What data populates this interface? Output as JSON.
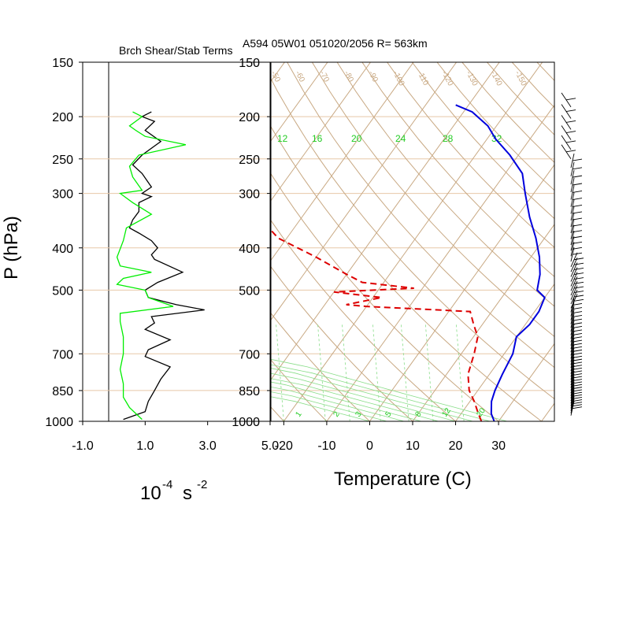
{
  "figure": {
    "left_panel_title": "Brch Shear/Stab Terms",
    "right_panel_title": "A594 05W01 051020/2056 R= 563km",
    "y_axis_label": "P (hPa)",
    "left_x_unit_base": "10",
    "left_x_unit_exp": "-4",
    "left_x_unit_s": "s",
    "left_x_unit_exp2": "-2",
    "right_x_axis_label": "Temperature (C)"
  },
  "colors": {
    "black": "#000000",
    "green": "#00ee00",
    "red": "#dd0000",
    "blue": "#0000dd",
    "tan": "#c8a882",
    "grid": "#e8c8a8",
    "mix_green": "#88dd88"
  },
  "chart_data": [
    {
      "type": "line",
      "panel": "left",
      "y_scale": "log-pressure",
      "ylim": [
        1000,
        150
      ],
      "xlim": [
        -1.0,
        5.0
      ],
      "yticks": [
        150,
        200,
        250,
        300,
        400,
        500,
        700,
        850,
        1000
      ],
      "xticks": [
        "-1.0",
        "1.0",
        "3.0",
        "5.0"
      ],
      "xtick_values": [
        -1.0,
        1.0,
        3.0,
        5.0
      ],
      "series": [
        {
          "color": "black",
          "points": [
            [
              1.2,
              195
            ],
            [
              0.9,
              200
            ],
            [
              1.3,
              205
            ],
            [
              1.0,
              215
            ],
            [
              1.5,
              228
            ],
            [
              0.9,
              245
            ],
            [
              0.6,
              258
            ],
            [
              0.9,
              270
            ],
            [
              1.2,
              290
            ],
            [
              0.9,
              300
            ],
            [
              1.2,
              305
            ],
            [
              0.8,
              315
            ],
            [
              0.8,
              330
            ],
            [
              0.6,
              345
            ],
            [
              0.5,
              360
            ],
            [
              0.8,
              370
            ],
            [
              1.2,
              385
            ],
            [
              1.4,
              400
            ],
            [
              1.2,
              415
            ],
            [
              1.3,
              425
            ],
            [
              2.2,
              455
            ],
            [
              1.4,
              480
            ],
            [
              1.0,
              500
            ],
            [
              1.1,
              520
            ],
            [
              2.0,
              540
            ],
            [
              2.9,
              555
            ],
            [
              1.2,
              575
            ],
            [
              1.3,
              595
            ],
            [
              1.0,
              615
            ],
            [
              1.8,
              650
            ],
            [
              1.1,
              685
            ],
            [
              1.0,
              710
            ],
            [
              1.8,
              750
            ],
            [
              1.5,
              800
            ],
            [
              1.3,
              850
            ],
            [
              1.1,
              900
            ],
            [
              1.0,
              950
            ],
            [
              0.3,
              990
            ]
          ]
        },
        {
          "color": "green",
          "points": [
            [
              0.6,
              195
            ],
            [
              0.9,
              200
            ],
            [
              0.5,
              210
            ],
            [
              0.7,
              215
            ],
            [
              1.0,
              222
            ],
            [
              2.3,
              232
            ],
            [
              0.8,
              245
            ],
            [
              0.5,
              260
            ],
            [
              0.6,
              275
            ],
            [
              0.9,
              295
            ],
            [
              0.2,
              300
            ],
            [
              0.6,
              315
            ],
            [
              1.2,
              335
            ],
            [
              0.4,
              360
            ],
            [
              0.3,
              385
            ],
            [
              0.1,
              420
            ],
            [
              0.2,
              440
            ],
            [
              1.2,
              455
            ],
            [
              0.3,
              470
            ],
            [
              0.1,
              485
            ],
            [
              1.0,
              500
            ],
            [
              1.1,
              520
            ],
            [
              1.9,
              545
            ],
            [
              0.2,
              565
            ],
            [
              0.2,
              590
            ],
            [
              0.3,
              640
            ],
            [
              0.3,
              700
            ],
            [
              0.2,
              760
            ],
            [
              0.3,
              820
            ],
            [
              0.3,
              880
            ],
            [
              0.5,
              930
            ],
            [
              0.9,
              990
            ]
          ]
        }
      ]
    },
    {
      "type": "line",
      "panel": "right",
      "y_scale": "log-pressure",
      "ylim": [
        1000,
        150
      ],
      "xlim": [
        -23,
        43
      ],
      "yticks": [
        150,
        200,
        250,
        300,
        400,
        500,
        700,
        850,
        1000
      ],
      "xticks": [
        "-20",
        "-10",
        "0",
        "10",
        "20",
        "30"
      ],
      "xtick_values": [
        -20,
        -10,
        0,
        10,
        20,
        30
      ],
      "skew": "skew-T log-P",
      "isotherm_labels": [
        "-50",
        "-60",
        "-70",
        "-80",
        "-90",
        "-100",
        "-110",
        "-120",
        "-130",
        "-140",
        "-150"
      ],
      "mixing_ratio_labels_upper": [
        "12",
        "16",
        "20",
        "24",
        "28",
        "32"
      ],
      "mixing_ratio_labels_lower": [
        "1",
        "2",
        "3",
        "5",
        "8",
        "12",
        "20"
      ],
      "series": [
        {
          "name": "",
          "color": "blue",
          "style": "solid",
          "points": [
            [
              29,
              1000
            ],
            [
              27,
              960
            ],
            [
              25,
              900
            ],
            [
              24,
              850
            ],
            [
              23,
              780
            ],
            [
              22,
              700
            ],
            [
              20,
              640
            ],
            [
              21,
              600
            ],
            [
              21,
              560
            ],
            [
              20,
              520
            ],
            [
              17,
              500
            ],
            [
              15,
              460
            ],
            [
              12,
              420
            ],
            [
              8,
              380
            ],
            [
              3,
              340
            ],
            [
              -2,
              300
            ],
            [
              -6,
              270
            ],
            [
              -12,
              245
            ],
            [
              -18,
              225
            ],
            [
              -22,
              210
            ],
            [
              -28,
              195
            ],
            [
              -33,
              188
            ]
          ]
        },
        {
          "name": "",
          "color": "red",
          "style": "dashed",
          "points": [
            [
              26,
              1000
            ],
            [
              24,
              960
            ],
            [
              21,
              900
            ],
            [
              18,
              850
            ],
            [
              15,
              780
            ],
            [
              13,
              700
            ],
            [
              11,
              640
            ],
            [
              8,
              600
            ],
            [
              5,
              560
            ],
            [
              -20,
              545
            ],
            [
              -25,
              540
            ],
            [
              -18,
              520
            ],
            [
              -30,
              505
            ],
            [
              -12,
              495
            ],
            [
              -25,
              480
            ],
            [
              -30,
              460
            ],
            [
              -40,
              420
            ],
            [
              -52,
              380
            ],
            [
              -60,
              340
            ],
            [
              -70,
              300
            ],
            [
              -72,
              270
            ],
            [
              -74,
              250
            ],
            [
              -78,
              225
            ],
            [
              -80,
              205
            ],
            [
              -82,
              190
            ]
          ]
        }
      ]
    },
    {
      "type": "wind-barbs",
      "panel": "right-margin",
      "levels_hPa_top": 190,
      "levels_hPa_bottom": 975
    }
  ]
}
